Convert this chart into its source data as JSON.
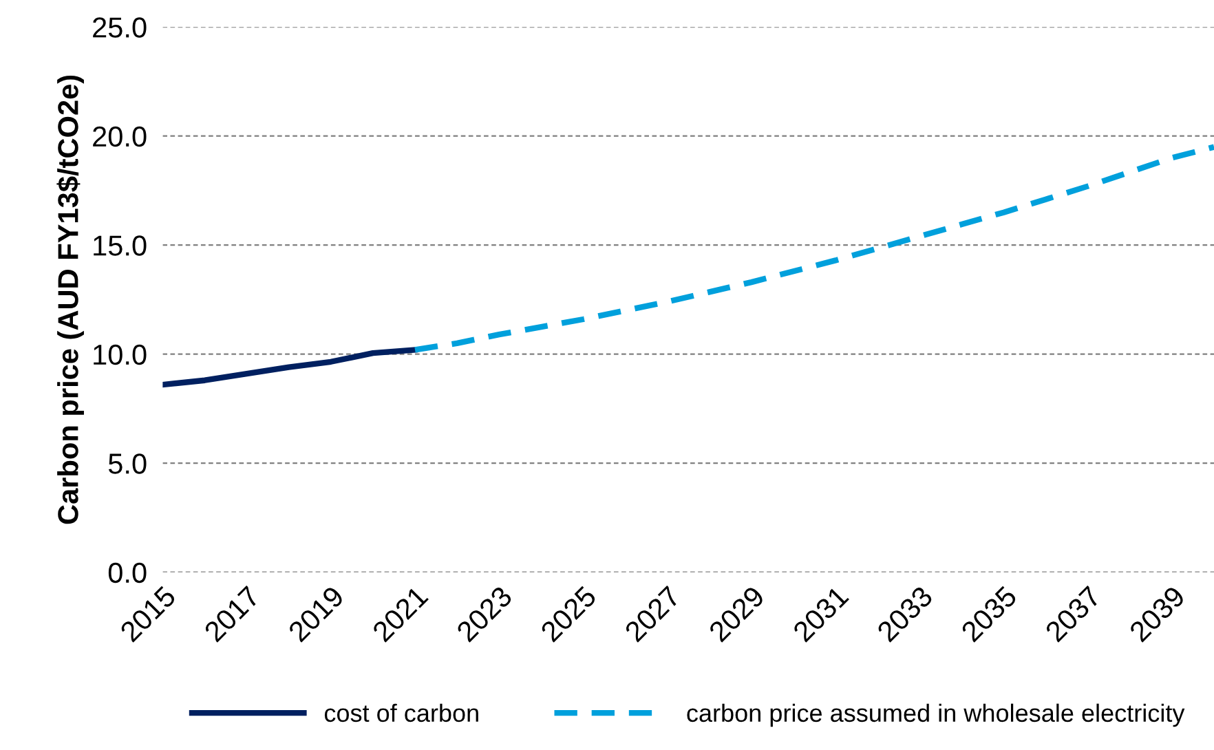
{
  "chart_data": {
    "type": "line",
    "ylabel": "Carbon price (AUD FY13$/tCO2e)",
    "categories": [
      "2015",
      null,
      "2017",
      null,
      "2019",
      null,
      "2021",
      null,
      "2023",
      null,
      "2025",
      null,
      "2027",
      null,
      "2029",
      null,
      "2031",
      null,
      "2033",
      null,
      "2035",
      null,
      "2037",
      null,
      "2039",
      null
    ],
    "series": [
      {
        "name": "cost of carbon",
        "color": "#002060",
        "line_style": "solid",
        "values": [
          8.6,
          8.8,
          9.1,
          9.4,
          9.65,
          10.05,
          10.2,
          null,
          null,
          null,
          null,
          null,
          null,
          null,
          null,
          null,
          null,
          null,
          null,
          null,
          null,
          null,
          null,
          null,
          null,
          null
        ]
      },
      {
        "name": "carbon price assumed in wholesale electricity",
        "color": "#00a0dc",
        "line_style": "dashed",
        "values": [
          null,
          null,
          null,
          null,
          null,
          null,
          10.2,
          10.5,
          10.9,
          11.25,
          11.6,
          12.0,
          12.4,
          12.85,
          13.3,
          13.8,
          14.3,
          14.85,
          15.4,
          15.95,
          16.5,
          17.1,
          17.7,
          18.35,
          19.0,
          19.5
        ]
      }
    ],
    "ylim": [
      0,
      25
    ],
    "yticks": [
      {
        "value": 0,
        "label": "0.0"
      },
      {
        "value": 5,
        "label": "5.0"
      },
      {
        "value": 10,
        "label": "10.0"
      },
      {
        "value": 15,
        "label": "15.0"
      },
      {
        "value": 20,
        "label": "20.0"
      },
      {
        "value": 25,
        "label": "25.0"
      }
    ],
    "grid": "y",
    "legend": "bottom",
    "marker": "none"
  }
}
